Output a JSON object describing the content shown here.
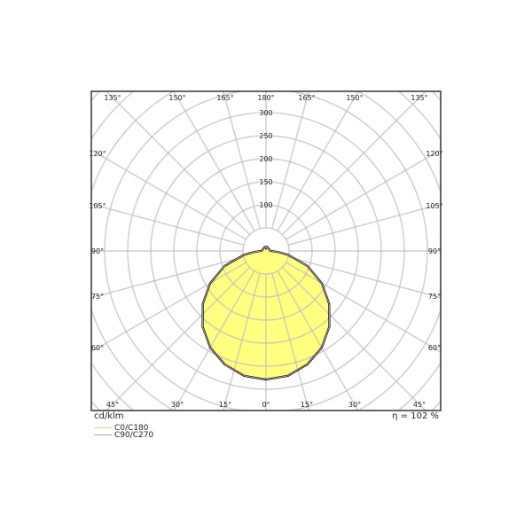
{
  "chart_data": {
    "type": "polar",
    "unit_label": "cd/klm",
    "efficiency_label": "η = 102 %",
    "radial_ticks": [
      100,
      150,
      200,
      250,
      300
    ],
    "radial_grid_step": 50,
    "radial_max": 500,
    "angle_grid_step_deg": 15,
    "angle_labels_bottom": [
      "45°",
      "30°",
      "15°",
      "0°",
      "15°",
      "30°",
      "45°"
    ],
    "angle_labels_left": [
      "60°",
      "75°",
      "90°",
      "105°",
      "120°"
    ],
    "angle_labels_right": [
      "60°",
      "75°",
      "90°",
      "105°",
      "120°"
    ],
    "angle_labels_top": [
      "135°",
      "150°",
      "165°",
      "180°",
      "165°",
      "150°",
      "135°"
    ],
    "grid": true,
    "legend_placement": "bottom-left",
    "angles_deg": [
      0,
      10,
      20,
      30,
      40,
      50,
      60,
      70,
      80,
      85,
      90,
      100,
      120,
      140,
      160,
      170,
      180
    ],
    "series": [
      {
        "name": "C0/C180",
        "color": "#f5c98a",
        "values": [
          279,
          275,
          262,
          242,
          214,
          179,
          140,
          96,
          49,
          26,
          10,
          8,
          8,
          8,
          9,
          9,
          6
        ]
      },
      {
        "name": "C90/C270",
        "color": "#aaaaaa",
        "values": [
          279,
          275,
          262,
          242,
          214,
          179,
          140,
          96,
          49,
          26,
          10,
          8,
          8,
          8,
          9,
          9,
          6
        ]
      }
    ],
    "fill_color": "#ffff80",
    "outline_color": "#000000"
  }
}
